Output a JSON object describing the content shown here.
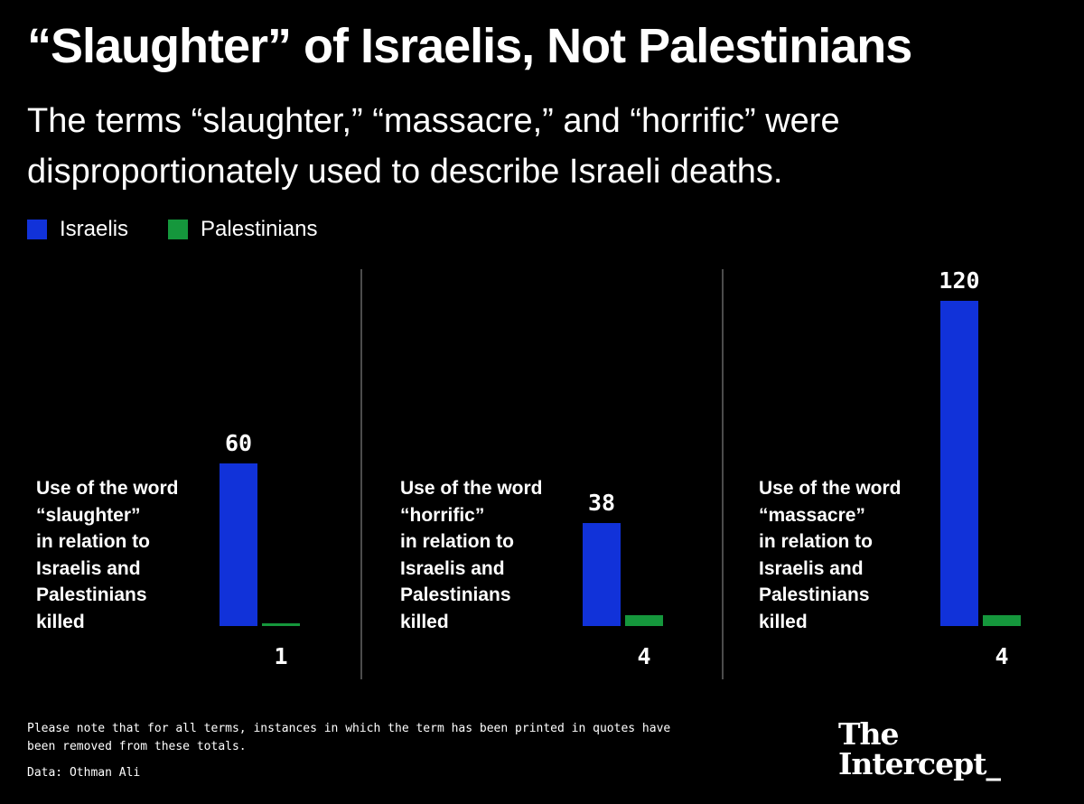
{
  "title": "“Slaughter” of Israelis, Not Palestinians",
  "subtitle": "The terms “slaughter,” “massacre,” and “horrific” were disproportionately used to describe Israeli deaths.",
  "colors": {
    "israelis": "#1132d9",
    "palestinians": "#15973c",
    "divider": "#666666"
  },
  "note": "Please note that for all terms, instances in which the term has been printed in quotes have been removed from these totals.",
  "source": "Data: Othman Ali",
  "logo": {
    "line1": "The",
    "line2": "Intercept_"
  },
  "chart_data": {
    "type": "bar",
    "legend": [
      "Israelis",
      "Palestinians"
    ],
    "legend_position": "top-left",
    "series": [
      {
        "name": "Israelis",
        "values": [
          60,
          38,
          120
        ]
      },
      {
        "name": "Palestinians",
        "values": [
          1,
          4,
          4
        ]
      }
    ],
    "panels": [
      {
        "label_lines": [
          "Use of the word",
          "“slaughter”",
          "in relation to",
          "Israelis and",
          "Palestinians",
          "killed"
        ],
        "israelis": 60,
        "palestinians": 1
      },
      {
        "label_lines": [
          "Use of the word",
          "“horrific”",
          "in relation to",
          "Israelis and",
          "Palestinians",
          "killed"
        ],
        "israelis": 38,
        "palestinians": 4
      },
      {
        "label_lines": [
          "Use of the word",
          "“massacre”",
          "in relation to",
          "Israelis and",
          "Palestinians",
          "killed"
        ],
        "israelis": 120,
        "palestinians": 4
      }
    ],
    "grid": false
  }
}
